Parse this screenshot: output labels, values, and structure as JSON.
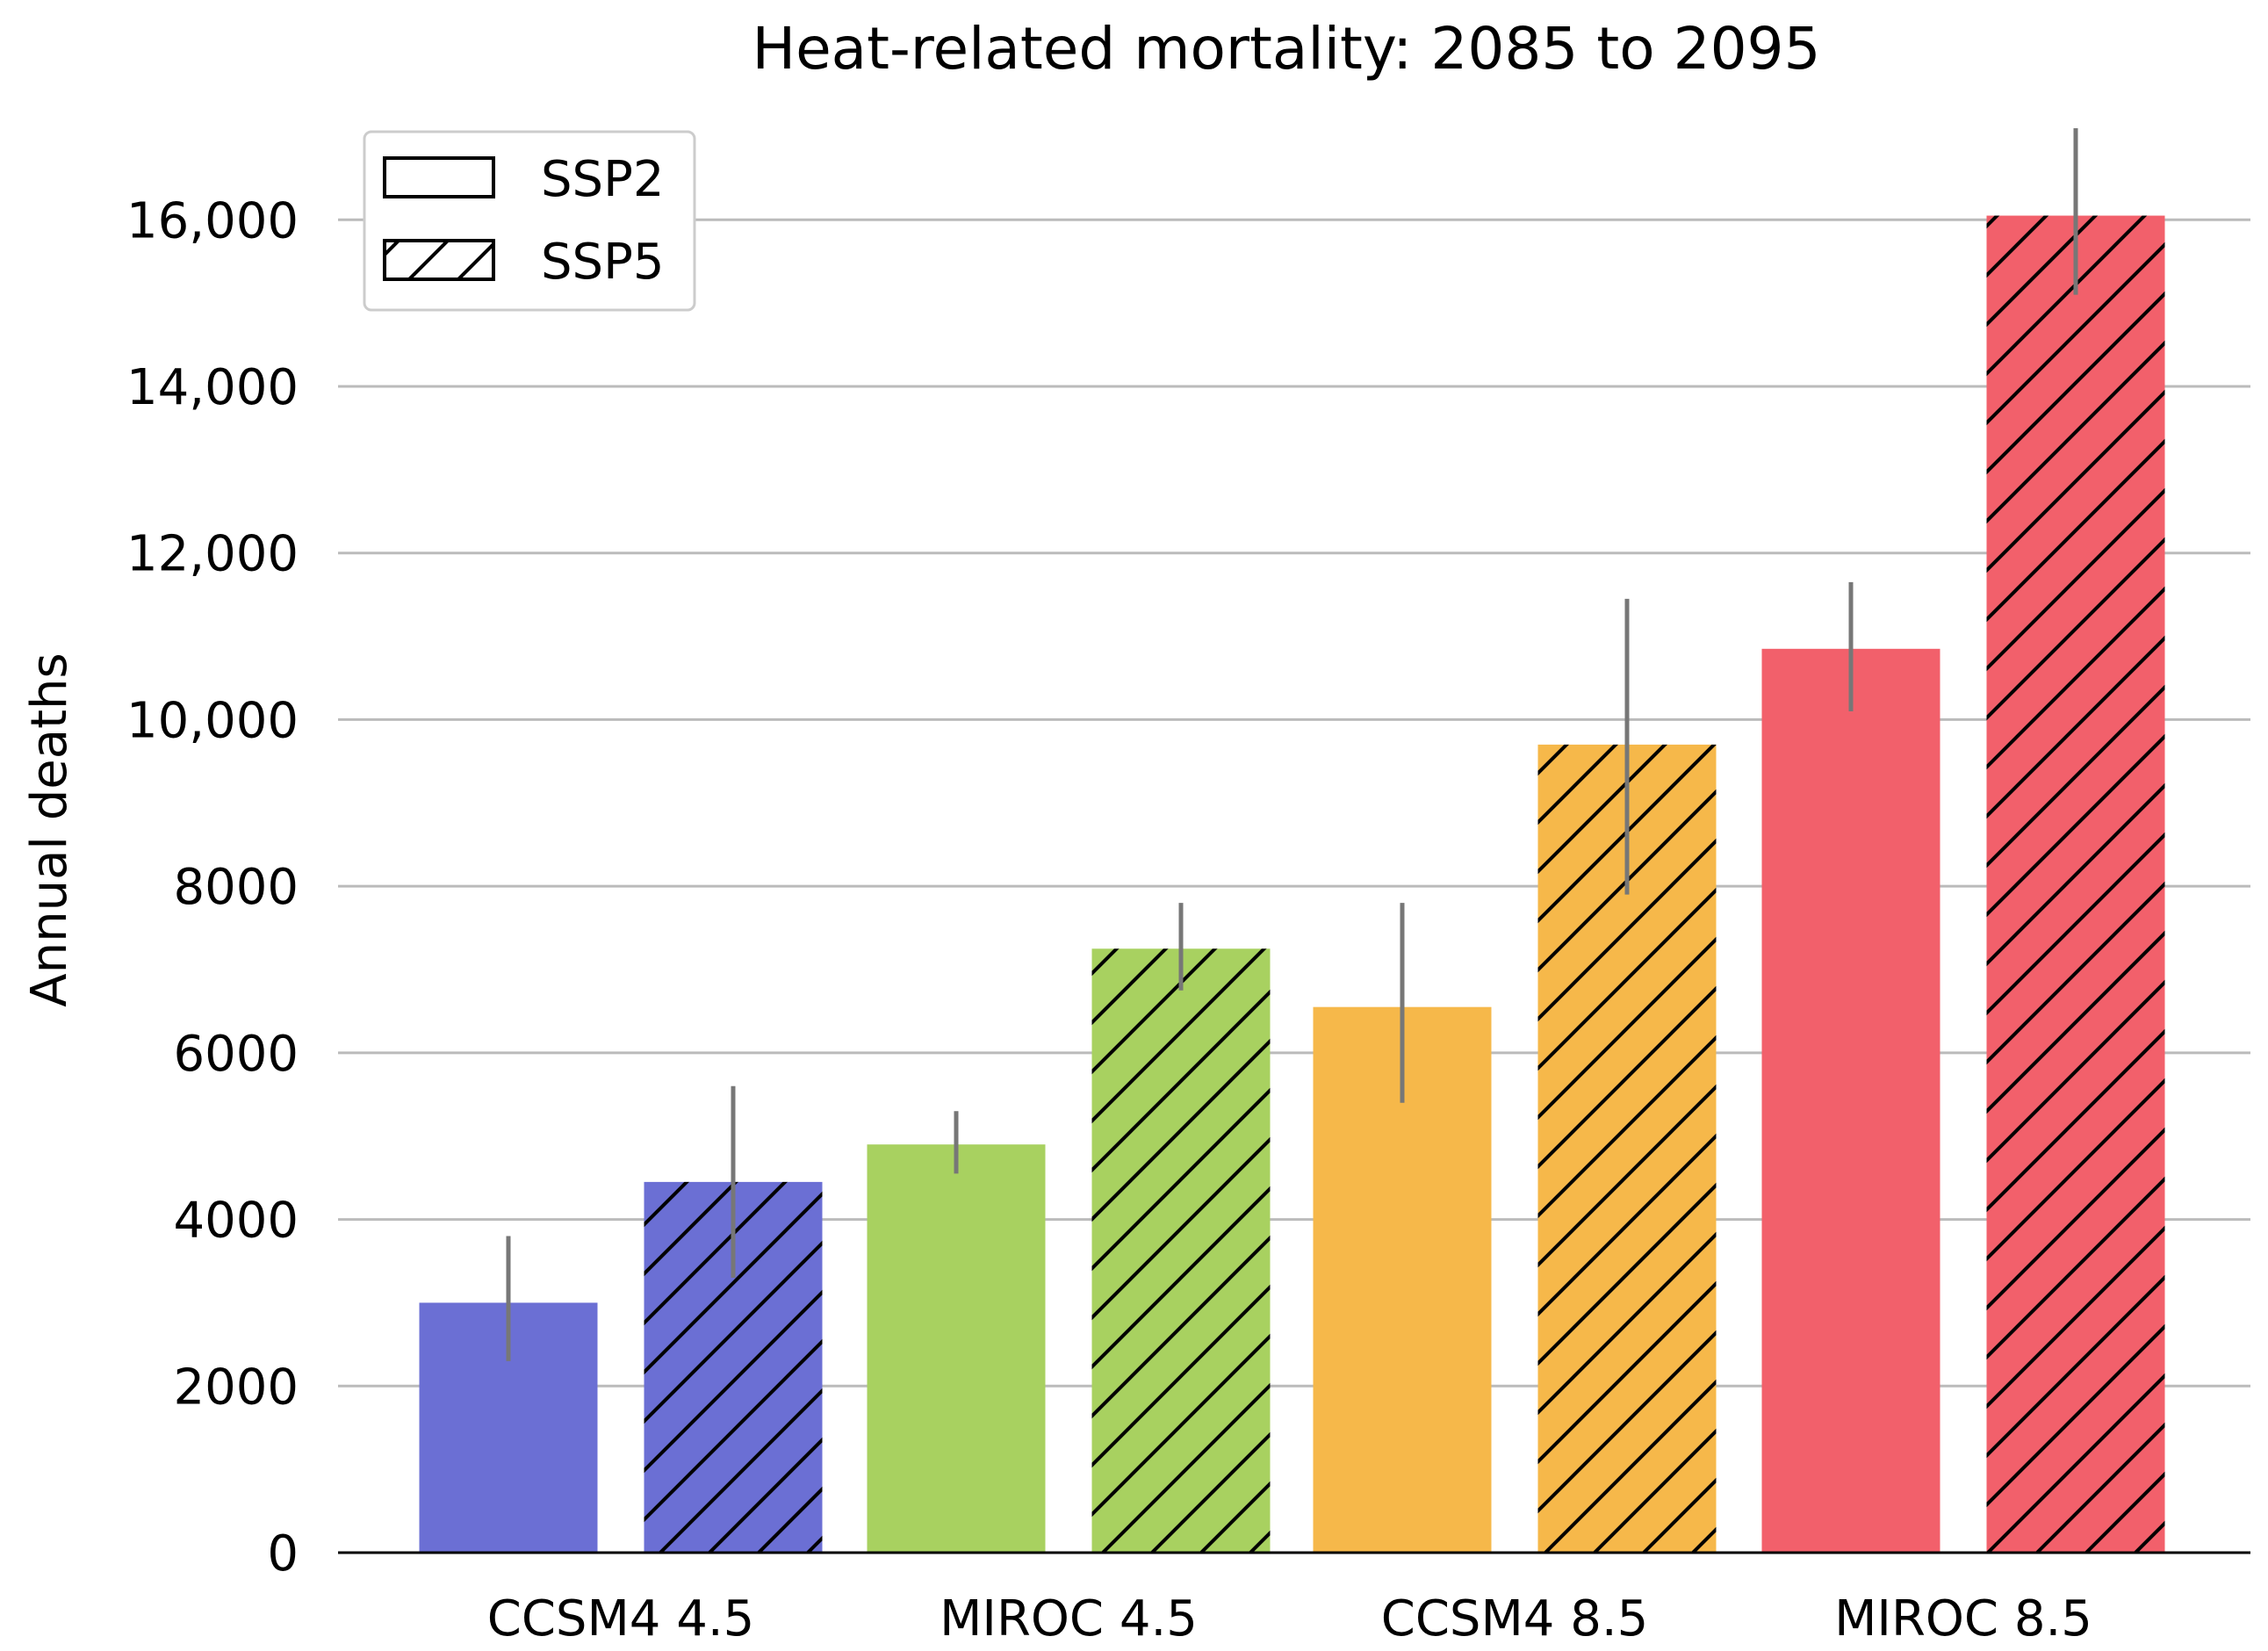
{
  "chart_data": {
    "type": "bar",
    "title": "Heat-related mortality: 2085 to 2095",
    "xlabel": "",
    "ylabel": "Annual deaths",
    "ylim": [
      0,
      17500
    ],
    "y_ticks": [
      {
        "value": 0,
        "label": "0"
      },
      {
        "value": 2000,
        "label": "2000"
      },
      {
        "value": 4000,
        "label": "4000"
      },
      {
        "value": 6000,
        "label": "6000"
      },
      {
        "value": 8000,
        "label": "8000"
      },
      {
        "value": 10000,
        "label": "10,000"
      },
      {
        "value": 12000,
        "label": "12,000"
      },
      {
        "value": 14000,
        "label": "14,000"
      },
      {
        "value": 16000,
        "label": "16,000"
      }
    ],
    "grid": "horizontal",
    "legend_position": "top-left",
    "categories": [
      "CCSM4 4.5",
      "MIROC 4.5",
      "CCSM4 8.5",
      "MIROC 8.5"
    ],
    "category_colors": [
      "#6b6fd4",
      "#a8d160",
      "#f6b84a",
      "#f2606b"
    ],
    "series": [
      {
        "name": "SSP2",
        "pattern": "solid",
        "values": [
          3000,
          4900,
          6550,
          10850
        ],
        "error_low": [
          2300,
          4550,
          5400,
          10100
        ],
        "error_high": [
          3800,
          5300,
          7800,
          11650
        ]
      },
      {
        "name": "SSP5",
        "pattern": "hatched",
        "values": [
          4450,
          7250,
          9700,
          16050
        ],
        "error_low": [
          3300,
          6750,
          7900,
          15100
        ],
        "error_high": [
          5600,
          7800,
          11450,
          17100
        ]
      }
    ],
    "error_bar_color": "#777777",
    "grid_color": "#bbbbbb"
  }
}
